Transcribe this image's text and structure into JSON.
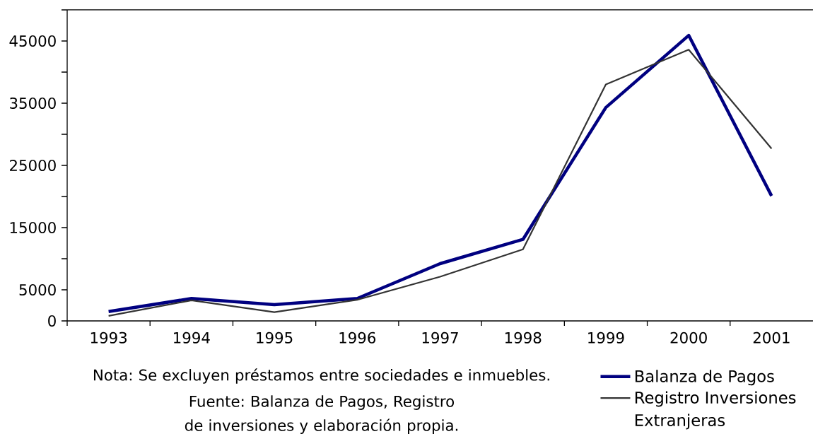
{
  "chart_data": {
    "type": "line",
    "categories": [
      "1993",
      "1994",
      "1995",
      "1996",
      "1997",
      "1998",
      "1999",
      "2000",
      "2001"
    ],
    "series": [
      {
        "name": "Balanza de Pagos",
        "color": "#000080",
        "values": [
          1500,
          3600,
          2600,
          3600,
          9200,
          13100,
          34300,
          45900,
          20100
        ]
      },
      {
        "name": "Registro Inversiones Extranjeras",
        "color": "#333333",
        "values": [
          800,
          3300,
          1400,
          3400,
          7100,
          11500,
          38000,
          43600,
          27700
        ]
      }
    ],
    "ylim": [
      0,
      50000
    ],
    "yticks": [
      0,
      5000,
      {
        "value": 10000,
        "label": null
      },
      15000,
      {
        "value": 20000,
        "label": null
      },
      25000,
      {
        "value": 30000,
        "label": null
      },
      35000,
      {
        "value": 40000,
        "label": null
      },
      45000,
      {
        "value": 50000,
        "label": null
      }
    ],
    "legend": "bottom right",
    "annotations": [
      "Nota: Se excluyen préstamos entre sociedades e inmuebles.",
      "Fuente: Balanza de Pagos, Registro de inversiones y elaboración propia."
    ]
  }
}
